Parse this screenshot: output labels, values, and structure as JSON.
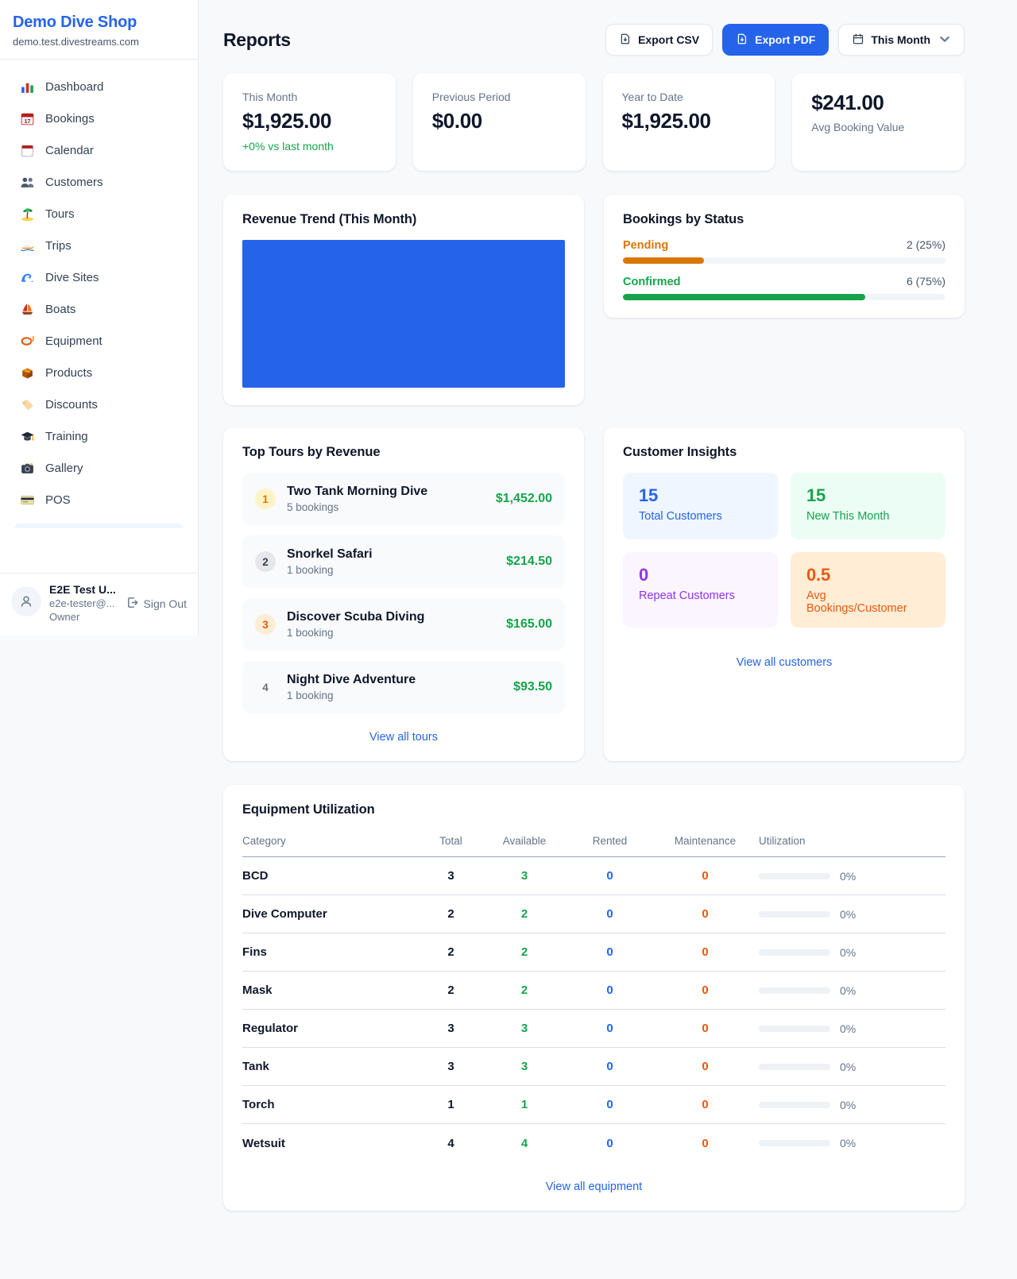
{
  "colors": {
    "accent_blue": "#2563eb",
    "green": "#16a34a",
    "amber": "#d97706",
    "orange": "#ea580c",
    "purple": "#9333ea"
  },
  "sidebar": {
    "shop_name": "Demo Dive Shop",
    "shop_domain": "demo.test.divestreams.com",
    "nav": [
      {
        "label": "Dashboard",
        "icon": "bar-chart-icon"
      },
      {
        "label": "Bookings",
        "icon": "calendar-date-icon",
        "icon_badge": "17"
      },
      {
        "label": "Calendar",
        "icon": "calendar-icon"
      },
      {
        "label": "Customers",
        "icon": "people-icon"
      },
      {
        "label": "Tours",
        "icon": "island-icon"
      },
      {
        "label": "Trips",
        "icon": "speedboat-icon"
      },
      {
        "label": "Dive Sites",
        "icon": "wave-icon"
      },
      {
        "label": "Boats",
        "icon": "sailboat-icon"
      },
      {
        "label": "Equipment",
        "icon": "dive-mask-icon"
      },
      {
        "label": "Products",
        "icon": "package-icon"
      },
      {
        "label": "Discounts",
        "icon": "tag-icon"
      },
      {
        "label": "Training",
        "icon": "graduation-cap-icon"
      },
      {
        "label": "Gallery",
        "icon": "camera-icon"
      },
      {
        "label": "POS",
        "icon": "credit-card-icon"
      }
    ],
    "user": {
      "name": "E2E Test U...",
      "email": "e2e-tester@...",
      "role": "Owner",
      "sign_out_label": "Sign Out"
    }
  },
  "header": {
    "title": "Reports",
    "export_csv_label": "Export CSV",
    "export_pdf_label": "Export PDF",
    "period_label": "This Month"
  },
  "stats": [
    {
      "label": "This Month",
      "value": "$1,925.00",
      "delta": "+0% vs last month"
    },
    {
      "label": "Previous Period",
      "value": "$0.00"
    },
    {
      "label": "Year to Date",
      "value": "$1,925.00"
    },
    {
      "label": "Avg Booking Value",
      "value": "$241.00"
    }
  ],
  "revenue_trend": {
    "title": "Revenue Trend (This Month)"
  },
  "bookings_by_status": {
    "title": "Bookings by Status",
    "rows": [
      {
        "label": "Pending",
        "value_text": "2 (25%)",
        "pct": 25,
        "color": "#d97706"
      },
      {
        "label": "Confirmed",
        "value_text": "6 (75%)",
        "pct": 75,
        "color": "#16a34a"
      }
    ]
  },
  "top_tours": {
    "title": "Top Tours by Revenue",
    "rows": [
      {
        "rank": "1",
        "name": "Two Tank Morning Dive",
        "bookings": "5 bookings",
        "amount": "$1,452.00"
      },
      {
        "rank": "2",
        "name": "Snorkel Safari",
        "bookings": "1 booking",
        "amount": "$214.50"
      },
      {
        "rank": "3",
        "name": "Discover Scuba Diving",
        "bookings": "1 booking",
        "amount": "$165.00"
      },
      {
        "rank": "4",
        "name": "Night Dive Adventure",
        "bookings": "1 booking",
        "amount": "$93.50"
      }
    ],
    "view_all": "View all tours"
  },
  "customer_insights": {
    "title": "Customer Insights",
    "tiles": [
      {
        "value": "15",
        "label": "Total Customers",
        "fg": "#2563eb",
        "bg": "#eff6ff"
      },
      {
        "value": "15",
        "label": "New This Month",
        "fg": "#16a34a",
        "bg": "#ecfdf5"
      },
      {
        "value": "0",
        "label": "Repeat Customers",
        "fg": "#9333ea",
        "bg": "#faf5ff"
      },
      {
        "value": "0.5",
        "label": "Avg Bookings/Customer",
        "fg": "#ea580c",
        "bg": "#ffedd5"
      }
    ],
    "view_all": "View all customers"
  },
  "equipment": {
    "title": "Equipment Utilization",
    "headers": [
      "Category",
      "Total",
      "Available",
      "Rented",
      "Maintenance",
      "Utilization"
    ],
    "rows": [
      {
        "category": "BCD",
        "total": "3",
        "available": "3",
        "rented": "0",
        "maintenance": "0",
        "utilization": "0%",
        "pct": 0
      },
      {
        "category": "Dive Computer",
        "total": "2",
        "available": "2",
        "rented": "0",
        "maintenance": "0",
        "utilization": "0%",
        "pct": 0
      },
      {
        "category": "Fins",
        "total": "2",
        "available": "2",
        "rented": "0",
        "maintenance": "0",
        "utilization": "0%",
        "pct": 0
      },
      {
        "category": "Mask",
        "total": "2",
        "available": "2",
        "rented": "0",
        "maintenance": "0",
        "utilization": "0%",
        "pct": 0
      },
      {
        "category": "Regulator",
        "total": "3",
        "available": "3",
        "rented": "0",
        "maintenance": "0",
        "utilization": "0%",
        "pct": 0
      },
      {
        "category": "Tank",
        "total": "3",
        "available": "3",
        "rented": "0",
        "maintenance": "0",
        "utilization": "0%",
        "pct": 0
      },
      {
        "category": "Torch",
        "total": "1",
        "available": "1",
        "rented": "0",
        "maintenance": "0",
        "utilization": "0%",
        "pct": 0
      },
      {
        "category": "Wetsuit",
        "total": "4",
        "available": "4",
        "rented": "0",
        "maintenance": "0",
        "utilization": "0%",
        "pct": 0
      }
    ],
    "view_all": "View all equipment"
  },
  "chart_data": [
    {
      "type": "bar",
      "title": "Revenue Trend (This Month)",
      "categories": [
        "This Month"
      ],
      "values": [
        1925
      ],
      "xlabel": "",
      "ylabel": "",
      "legend": false,
      "grid": false,
      "bar_color": "#2563eb",
      "note_style": "single full-width solid bar, no axes or labels visible"
    },
    {
      "type": "bar",
      "title": "Bookings by Status",
      "categories": [
        "Pending",
        "Confirmed"
      ],
      "values": [
        2,
        6
      ],
      "percentages": [
        25,
        75
      ],
      "bar_colors": [
        "#d97706",
        "#16a34a"
      ],
      "orientation": "horizontal"
    }
  ]
}
